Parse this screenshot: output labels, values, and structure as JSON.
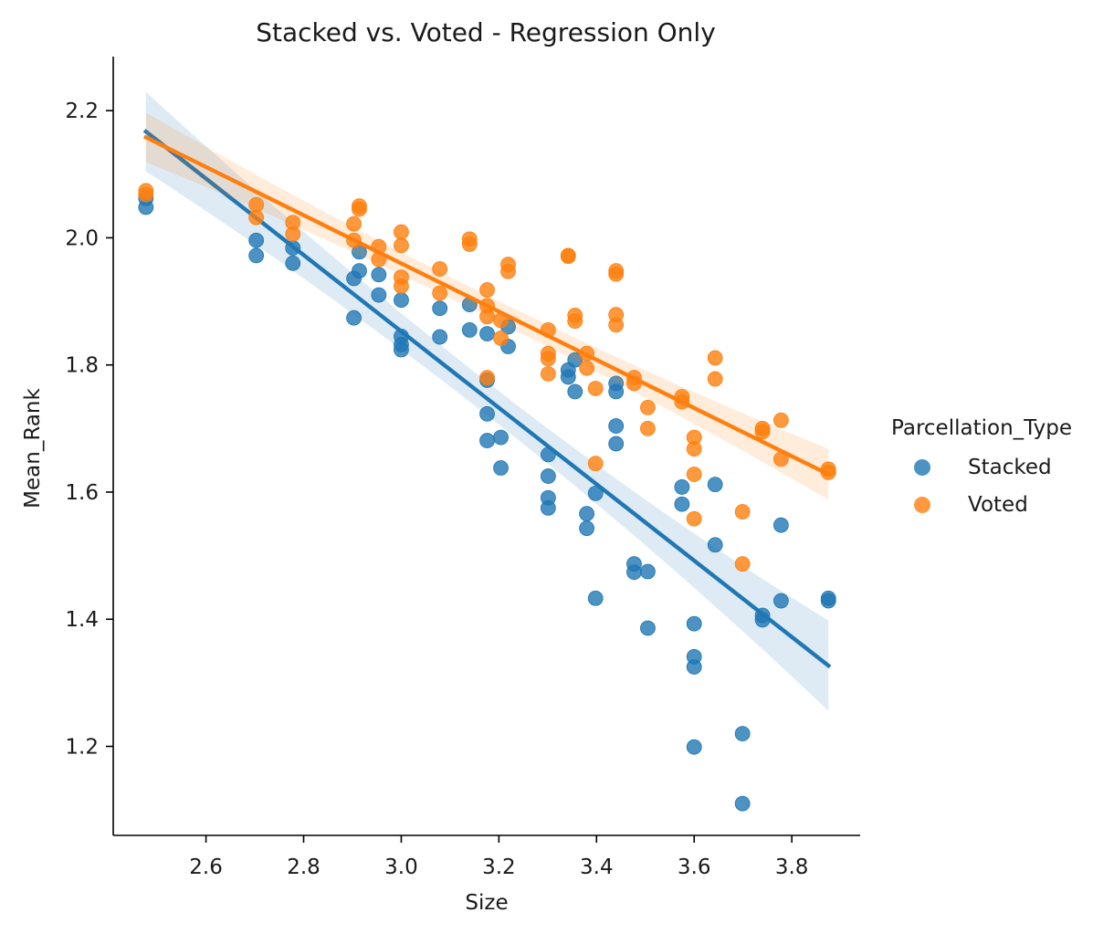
{
  "chart_data": {
    "type": "scatter",
    "title": "Stacked vs. Voted - Regression Only",
    "xlabel": "Size",
    "ylabel": "Mean_Rank",
    "xlim": [
      2.41,
      3.94
    ],
    "ylim": [
      1.06,
      2.285
    ],
    "xticks": [
      2.6,
      2.8,
      3.0,
      3.2,
      3.4,
      3.6,
      3.8
    ],
    "xtick_labels": [
      "2.6",
      "2.8",
      "3.0",
      "3.2",
      "3.4",
      "3.6",
      "3.8"
    ],
    "yticks": [
      1.2,
      1.4,
      1.6,
      1.8,
      2.0,
      2.2
    ],
    "ytick_labels": [
      "1.2",
      "1.4",
      "1.6",
      "1.8",
      "2.0",
      "2.2"
    ],
    "grid": false,
    "legend": {
      "title": "Parcellation_Type",
      "placement": "right"
    },
    "series": [
      {
        "name": "Stacked",
        "color": "#1f77b4",
        "regression": {
          "x": [
            2.477,
            3.875
          ],
          "y": [
            2.167,
            1.327
          ],
          "ci_low": [
            2.105,
            1.253
          ],
          "ci_high": [
            2.23,
            1.395
          ]
        },
        "points": [
          [
            2.477,
            2.062
          ],
          [
            2.477,
            2.048
          ],
          [
            2.703,
            1.996
          ],
          [
            2.703,
            1.972
          ],
          [
            2.778,
            1.984
          ],
          [
            2.778,
            1.96
          ],
          [
            2.903,
            1.936
          ],
          [
            2.903,
            1.874
          ],
          [
            2.914,
            1.978
          ],
          [
            2.914,
            1.948
          ],
          [
            2.954,
            1.942
          ],
          [
            2.954,
            1.91
          ],
          [
            3.0,
            1.902
          ],
          [
            3.0,
            1.845
          ],
          [
            3.0,
            1.832
          ],
          [
            3.0,
            1.824
          ],
          [
            3.079,
            1.889
          ],
          [
            3.079,
            1.844
          ],
          [
            3.14,
            1.895
          ],
          [
            3.14,
            1.855
          ],
          [
            3.176,
            1.849
          ],
          [
            3.176,
            1.776
          ],
          [
            3.176,
            1.723
          ],
          [
            3.176,
            1.681
          ],
          [
            3.204,
            1.686
          ],
          [
            3.204,
            1.638
          ],
          [
            3.219,
            1.86
          ],
          [
            3.219,
            1.829
          ],
          [
            3.301,
            1.659
          ],
          [
            3.301,
            1.625
          ],
          [
            3.301,
            1.591
          ],
          [
            3.301,
            1.575
          ],
          [
            3.342,
            1.792
          ],
          [
            3.342,
            1.781
          ],
          [
            3.356,
            1.808
          ],
          [
            3.356,
            1.758
          ],
          [
            3.38,
            1.566
          ],
          [
            3.38,
            1.543
          ],
          [
            3.398,
            1.598
          ],
          [
            3.398,
            1.433
          ],
          [
            3.44,
            1.771
          ],
          [
            3.44,
            1.758
          ],
          [
            3.44,
            1.704
          ],
          [
            3.44,
            1.676
          ],
          [
            3.477,
            1.487
          ],
          [
            3.477,
            1.474
          ],
          [
            3.505,
            1.475
          ],
          [
            3.505,
            1.386
          ],
          [
            3.575,
            1.608
          ],
          [
            3.575,
            1.581
          ],
          [
            3.6,
            1.393
          ],
          [
            3.6,
            1.341
          ],
          [
            3.6,
            1.325
          ],
          [
            3.6,
            1.199
          ],
          [
            3.643,
            1.612
          ],
          [
            3.643,
            1.517
          ],
          [
            3.699,
            1.22
          ],
          [
            3.699,
            1.11
          ],
          [
            3.74,
            1.406
          ],
          [
            3.74,
            1.399
          ],
          [
            3.778,
            1.548
          ],
          [
            3.778,
            1.429
          ],
          [
            3.875,
            1.433
          ],
          [
            3.875,
            1.429
          ]
        ]
      },
      {
        "name": "Voted",
        "color": "#ff7f0e",
        "regression": {
          "x": [
            2.477,
            3.875
          ],
          "y": [
            2.158,
            1.628
          ],
          "ci_low": [
            2.12,
            1.588
          ],
          "ci_high": [
            2.198,
            1.668
          ]
        },
        "points": [
          [
            2.477,
            2.074
          ],
          [
            2.477,
            2.068
          ],
          [
            2.703,
            2.052
          ],
          [
            2.703,
            2.032
          ],
          [
            2.778,
            2.024
          ],
          [
            2.778,
            2.006
          ],
          [
            2.903,
            2.022
          ],
          [
            2.903,
            1.996
          ],
          [
            2.914,
            2.05
          ],
          [
            2.914,
            2.045
          ],
          [
            2.954,
            1.986
          ],
          [
            2.954,
            1.966
          ],
          [
            3.0,
            2.009
          ],
          [
            3.0,
            1.988
          ],
          [
            3.0,
            1.938
          ],
          [
            3.0,
            1.924
          ],
          [
            3.079,
            1.951
          ],
          [
            3.079,
            1.913
          ],
          [
            3.14,
            1.998
          ],
          [
            3.14,
            1.99
          ],
          [
            3.176,
            1.918
          ],
          [
            3.176,
            1.893
          ],
          [
            3.176,
            1.876
          ],
          [
            3.176,
            1.78
          ],
          [
            3.204,
            1.87
          ],
          [
            3.204,
            1.842
          ],
          [
            3.219,
            1.958
          ],
          [
            3.219,
            1.947
          ],
          [
            3.301,
            1.855
          ],
          [
            3.301,
            1.818
          ],
          [
            3.301,
            1.81
          ],
          [
            3.301,
            1.786
          ],
          [
            3.342,
            1.972
          ],
          [
            3.342,
            1.971
          ],
          [
            3.356,
            1.878
          ],
          [
            3.356,
            1.869
          ],
          [
            3.38,
            1.818
          ],
          [
            3.38,
            1.795
          ],
          [
            3.398,
            1.763
          ],
          [
            3.398,
            1.645
          ],
          [
            3.44,
            1.948
          ],
          [
            3.44,
            1.943
          ],
          [
            3.44,
            1.879
          ],
          [
            3.44,
            1.863
          ],
          [
            3.477,
            1.78
          ],
          [
            3.477,
            1.771
          ],
          [
            3.505,
            1.733
          ],
          [
            3.505,
            1.7
          ],
          [
            3.575,
            1.75
          ],
          [
            3.575,
            1.742
          ],
          [
            3.6,
            1.686
          ],
          [
            3.6,
            1.668
          ],
          [
            3.6,
            1.628
          ],
          [
            3.6,
            1.558
          ],
          [
            3.643,
            1.811
          ],
          [
            3.643,
            1.778
          ],
          [
            3.699,
            1.569
          ],
          [
            3.699,
            1.487
          ],
          [
            3.74,
            1.7
          ],
          [
            3.74,
            1.695
          ],
          [
            3.778,
            1.713
          ],
          [
            3.778,
            1.652
          ],
          [
            3.875,
            1.636
          ],
          [
            3.875,
            1.631
          ]
        ]
      }
    ]
  }
}
